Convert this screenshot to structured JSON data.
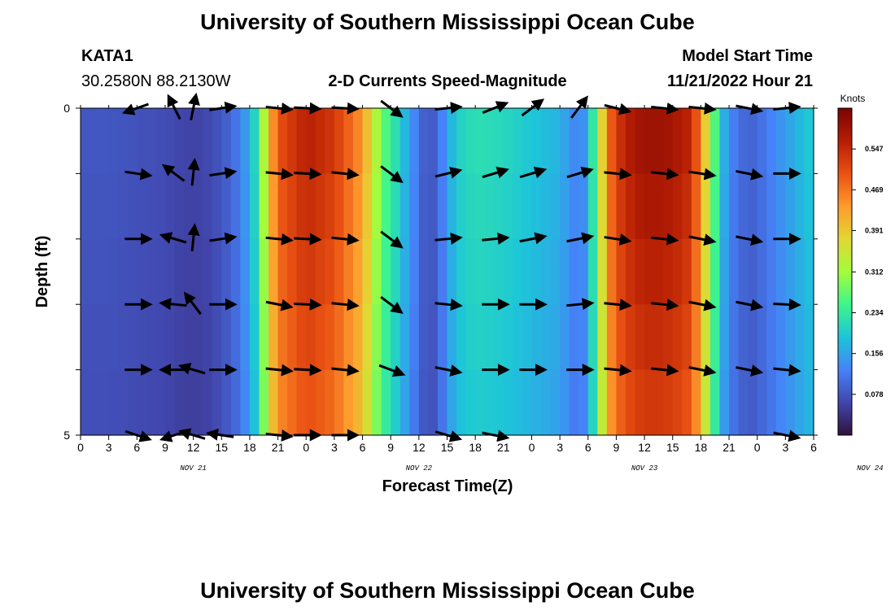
{
  "header": {
    "title": "University of Southern Mississippi Ocean Cube",
    "station": "KATA1",
    "coords": "30.2580N  88.2130W",
    "subtitle": "2-D Currents Speed-Magnitude",
    "model_label": "Model Start Time",
    "model_time": "11/21/2022 Hour 21"
  },
  "footer": {
    "title": "University of Southern Mississippi Ocean Cube"
  },
  "colors": {
    "arrow": "#000000",
    "scale": [
      "#30123b",
      "#4146ac",
      "#4682f8",
      "#1dc5d9",
      "#3ef58b",
      "#a4fc3c",
      "#e3d634",
      "#fe9b2d",
      "#e95113",
      "#b51d04",
      "#7a0403"
    ]
  },
  "chart_data": {
    "type": "heatmap",
    "title": "2-D Currents Speed-Magnitude",
    "xlabel": "Forecast Time(Z)",
    "ylabel": "Depth (ft)",
    "x_ticks": [
      "0",
      "3",
      "6",
      "9",
      "12",
      "15",
      "18",
      "21",
      "0",
      "3",
      "6",
      "9",
      "12",
      "15",
      "18",
      "21",
      "0",
      "3",
      "6",
      "9",
      "12",
      "15",
      "18",
      "21",
      "0",
      "3",
      "6"
    ],
    "day_labels": [
      "NOV 21",
      "NOV 22",
      "NOV 23",
      "NOV 24"
    ],
    "y_ticks": [
      "0",
      "5"
    ],
    "ylim": [
      0,
      5
    ],
    "hours": 78,
    "colorbar": {
      "label": "Knots",
      "min": 0.0,
      "max": 0.625,
      "ticks": [
        "0.078",
        "0.156",
        "0.234",
        "0.312",
        "0.391",
        "0.469",
        "0.547"
      ]
    },
    "speed_profile": {
      "hours": [
        0,
        3,
        6,
        9,
        11,
        13,
        15,
        17,
        18,
        19,
        20,
        21,
        24,
        27,
        30,
        31,
        32,
        33,
        34,
        35,
        36,
        37,
        38,
        39,
        40,
        42,
        45,
        48,
        51,
        53,
        54,
        55,
        56,
        57,
        59,
        61,
        63,
        65,
        66,
        67,
        68,
        69,
        71,
        72,
        75,
        78
      ],
      "knots": [
        0.08,
        0.08,
        0.075,
        0.07,
        0.06,
        0.06,
        0.08,
        0.12,
        0.17,
        0.24,
        0.4,
        0.5,
        0.56,
        0.53,
        0.44,
        0.36,
        0.28,
        0.24,
        0.2,
        0.15,
        0.11,
        0.07,
        0.1,
        0.15,
        0.2,
        0.22,
        0.21,
        0.19,
        0.17,
        0.12,
        0.16,
        0.3,
        0.46,
        0.53,
        0.58,
        0.59,
        0.58,
        0.55,
        0.45,
        0.32,
        0.2,
        0.13,
        0.09,
        0.1,
        0.15,
        0.2
      ]
    },
    "depth_levels": [
      0,
      1,
      2,
      3,
      4,
      5
    ],
    "vectors": [
      {
        "hour": 6,
        "rows": [
          [
            -1.0,
            0.35
          ],
          [
            1.0,
            0.15
          ],
          [
            1.0,
            0.0
          ],
          [
            1.0,
            0.0
          ],
          [
            1.0,
            0.0
          ],
          [
            0.9,
            0.3
          ]
        ]
      },
      {
        "hour": 10,
        "rows": [
          [
            -0.5,
            -1.0
          ],
          [
            -0.8,
            -0.6
          ],
          [
            -1.0,
            -0.3
          ],
          [
            -1.0,
            -0.1
          ],
          [
            -1.0,
            0.0
          ],
          [
            -0.9,
            0.3
          ]
        ]
      },
      {
        "hour": 12,
        "rows": [
          [
            0.2,
            -1.0
          ],
          [
            0.1,
            -1.0
          ],
          [
            0.1,
            -1.0
          ],
          [
            -0.6,
            -0.8
          ],
          [
            -1.0,
            -0.3
          ],
          [
            -1.0,
            -0.3
          ]
        ]
      },
      {
        "hour": 15,
        "rows": [
          [
            1.0,
            -0.15
          ],
          [
            1.0,
            -0.15
          ],
          [
            1.0,
            -0.15
          ],
          [
            1.0,
            0.0
          ],
          [
            1.0,
            0.0
          ],
          [
            -1.0,
            -0.15
          ]
        ]
      },
      {
        "hour": 21,
        "rows": [
          [
            1.0,
            0.1
          ],
          [
            1.0,
            0.1
          ],
          [
            1.0,
            0.1
          ],
          [
            1.0,
            0.2
          ],
          [
            1.0,
            0.1
          ],
          [
            1.0,
            0.1
          ]
        ]
      },
      {
        "hour": 24,
        "rows": [
          [
            1.0,
            0.05
          ],
          [
            1.0,
            0.05
          ],
          [
            1.0,
            0.05
          ],
          [
            1.0,
            0.05
          ],
          [
            1.0,
            0.05
          ],
          [
            1.0,
            0.0
          ]
        ]
      },
      {
        "hour": 28,
        "rows": [
          [
            1.0,
            0.05
          ],
          [
            1.0,
            0.1
          ],
          [
            1.0,
            0.1
          ],
          [
            1.0,
            0.1
          ],
          [
            1.0,
            0.1
          ],
          [
            1.0,
            0.0
          ]
        ]
      },
      {
        "hour": 33,
        "rows": [
          [
            0.8,
            0.6
          ],
          [
            0.8,
            0.6
          ],
          [
            0.8,
            0.6
          ],
          [
            0.8,
            0.6
          ],
          [
            0.8,
            0.3
          ],
          [
            0.0,
            0.0
          ]
        ]
      },
      {
        "hour": 39,
        "rows": [
          [
            1.0,
            -0.1
          ],
          [
            1.0,
            -0.25
          ],
          [
            1.0,
            -0.1
          ],
          [
            1.0,
            0.1
          ],
          [
            1.0,
            0.2
          ],
          [
            1.0,
            0.3
          ]
        ]
      },
      {
        "hour": 44,
        "rows": [
          [
            1.0,
            -0.4
          ],
          [
            1.0,
            -0.3
          ],
          [
            1.0,
            -0.1
          ],
          [
            1.0,
            0.0
          ],
          [
            1.0,
            0.0
          ],
          [
            1.0,
            0.2
          ]
        ]
      },
      {
        "hour": 48,
        "rows": [
          [
            0.8,
            -0.6
          ],
          [
            1.0,
            -0.3
          ],
          [
            1.0,
            -0.2
          ],
          [
            1.0,
            0.0
          ],
          [
            1.0,
            0.0
          ],
          [
            0.0,
            0.0
          ]
        ]
      },
      {
        "hour": 53,
        "rows": [
          [
            0.6,
            -0.8
          ],
          [
            1.0,
            -0.3
          ],
          [
            1.0,
            -0.2
          ],
          [
            1.0,
            -0.1
          ],
          [
            1.0,
            0.0
          ],
          [
            0.0,
            0.0
          ]
        ]
      },
      {
        "hour": 57,
        "rows": [
          [
            1.0,
            0.25
          ],
          [
            1.0,
            0.1
          ],
          [
            1.0,
            0.15
          ],
          [
            1.0,
            0.1
          ],
          [
            1.0,
            0.1
          ],
          [
            0.0,
            0.0
          ]
        ]
      },
      {
        "hour": 62,
        "rows": [
          [
            1.0,
            0.1
          ],
          [
            1.0,
            0.1
          ],
          [
            1.0,
            0.1
          ],
          [
            1.0,
            0.1
          ],
          [
            1.0,
            0.1
          ],
          [
            0.0,
            0.0
          ]
        ]
      },
      {
        "hour": 66,
        "rows": [
          [
            1.0,
            0.1
          ],
          [
            1.0,
            0.15
          ],
          [
            1.0,
            0.2
          ],
          [
            1.0,
            0.2
          ],
          [
            1.0,
            0.2
          ],
          [
            0.0,
            0.0
          ]
        ]
      },
      {
        "hour": 71,
        "rows": [
          [
            1.0,
            0.2
          ],
          [
            1.0,
            0.2
          ],
          [
            1.0,
            0.2
          ],
          [
            1.0,
            0.2
          ],
          [
            1.0,
            0.2
          ],
          [
            0.0,
            0.0
          ]
        ]
      },
      {
        "hour": 75,
        "rows": [
          [
            1.0,
            -0.1
          ],
          [
            1.0,
            0.0
          ],
          [
            1.0,
            0.0
          ],
          [
            1.0,
            0.05
          ],
          [
            1.0,
            0.1
          ],
          [
            1.0,
            0.2
          ]
        ]
      }
    ]
  }
}
